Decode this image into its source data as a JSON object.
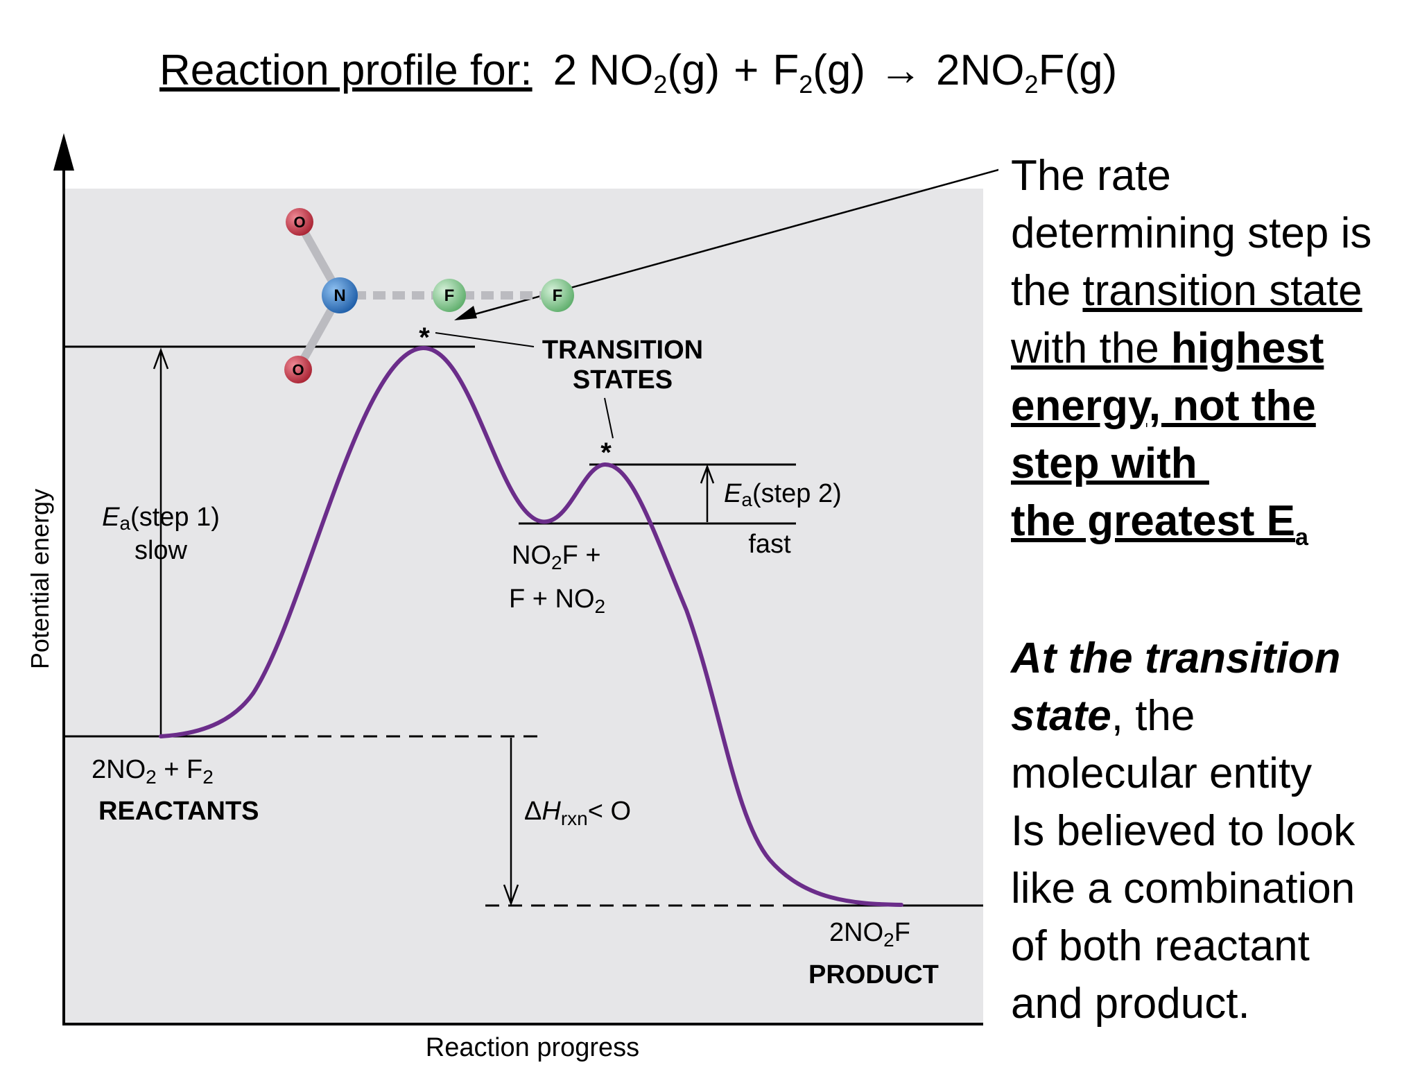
{
  "title": {
    "lead": "Reaction profile for:",
    "eq_p1": "2 NO",
    "eq_s1": "2",
    "eq_p2": "(g)",
    "eq_plus": "+",
    "eq_p3": "F",
    "eq_s2": "2",
    "eq_p4": "(g)",
    "eq_arrow": "→",
    "eq_p5": "2NO",
    "eq_s3": "2",
    "eq_p6": "F(g)"
  },
  "axes": {
    "y_label": "Potential energy",
    "x_label": "Reaction progress"
  },
  "labels": {
    "ea1_e": "E",
    "ea1_sub": "a",
    "ea1_rest": "(step 1)",
    "ea1_speed": "slow",
    "transition_1": "TRANSITION",
    "transition_2": "STATES",
    "ea2_e": "E",
    "ea2_sub": "a",
    "ea2_rest": "(step 2)",
    "ea2_speed": "fast",
    "inter_1a": "NO",
    "inter_1s": "2",
    "inter_1b": "F +",
    "inter_2a": "F + NO",
    "inter_2s": "2",
    "react_a": "2NO",
    "react_s1": "2",
    "react_b": " + F",
    "react_s2": "2",
    "reactants": "REACTANTS",
    "dh_delta": "Δ",
    "dh_h": "H",
    "dh_sub": "rxn",
    "dh_rest": "< O",
    "prod_a": "2NO",
    "prod_s": "2",
    "prod_b": "F",
    "product": "PRODUCT",
    "star": "*"
  },
  "atoms": {
    "o_top": "O",
    "o_bottom": "O",
    "n": "N",
    "f1": "F",
    "f2": "F"
  },
  "notes": {
    "rate_1": "The rate",
    "rate_2": "determining step is",
    "rate_3a": "the ",
    "rate_3b": "transition state",
    "rate_4a": "with the ",
    "rate_4b": "highest",
    "rate_5": "energy, not the",
    "rate_6": "step with ",
    "rate_7a": "the greatest E",
    "rate_7s": "a",
    "ts_1": "At the transition",
    "ts_2a": "state",
    "ts_2b": ", the",
    "ts_3": "molecular entity",
    "ts_4": "Is believed to look",
    "ts_5": "like a combination",
    "ts_6": "of both reactant",
    "ts_7": "and product."
  },
  "colors": {
    "curve": "#6b2d8a",
    "panel": "#e6e6e8",
    "atom_o": "#c8384a",
    "atom_n": "#3a7fc8",
    "atom_f": "#86c88e"
  }
}
